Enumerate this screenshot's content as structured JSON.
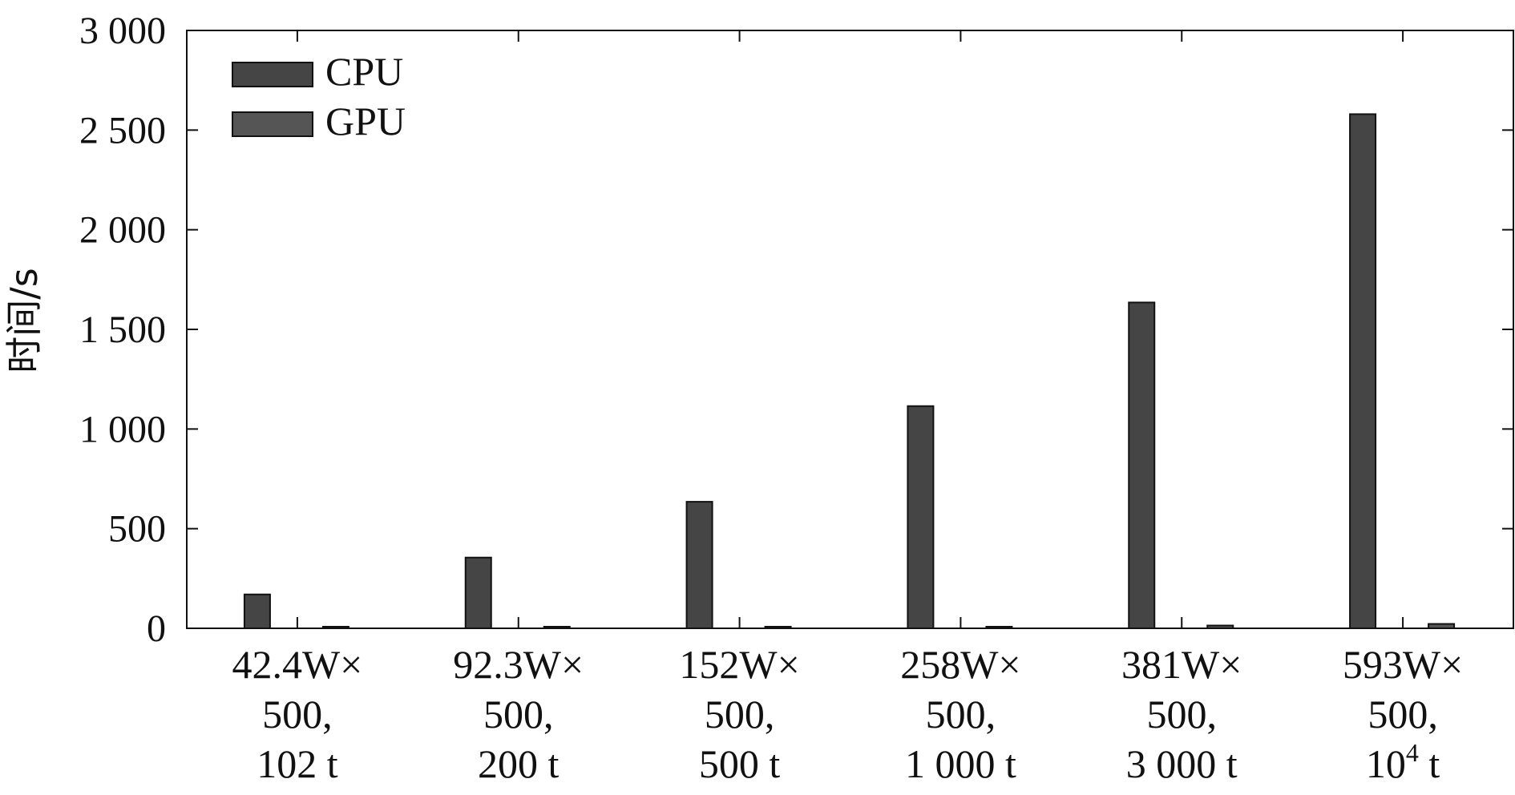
{
  "chart_data": {
    "type": "bar",
    "ylabel": "时间/s",
    "xlabel": "",
    "ylim": [
      0,
      3000
    ],
    "yticks": [
      0,
      500,
      1000,
      1500,
      2000,
      2500,
      3000
    ],
    "ytick_labels": [
      "0",
      "500",
      "1 000",
      "1 500",
      "2 000",
      "2 500",
      "3 000"
    ],
    "categories": [
      {
        "line1": "42.4W×",
        "line2": "500,",
        "line3": "102 t",
        "sup": ""
      },
      {
        "line1": "92.3W×",
        "line2": "500,",
        "line3": "200 t",
        "sup": ""
      },
      {
        "line1": "152W×",
        "line2": "500,",
        "line3": "500 t",
        "sup": ""
      },
      {
        "line1": "258W×",
        "line2": "500,",
        "line3": "1 000 t",
        "sup": ""
      },
      {
        "line1": "381W×",
        "line2": "500,",
        "line3": "3 000 t",
        "sup": ""
      },
      {
        "line1": "593W×",
        "line2": "500,",
        "line3": "10",
        "sup": "4",
        "line3_suffix": " t"
      }
    ],
    "series": [
      {
        "name": "CPU",
        "color": "#454545",
        "values": [
          170,
          355,
          635,
          1115,
          1635,
          2580
        ]
      },
      {
        "name": "GPU",
        "color": "#555555",
        "values": [
          1,
          2,
          4,
          8,
          14,
          22
        ]
      }
    ],
    "legend_position": "top-left",
    "grid": false
  }
}
